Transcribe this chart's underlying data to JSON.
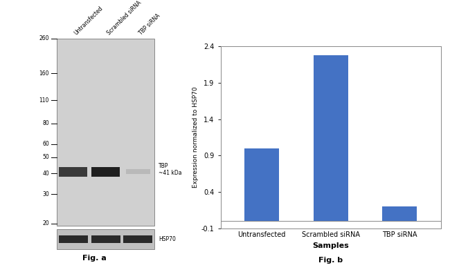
{
  "fig_width": 6.5,
  "fig_height": 3.94,
  "dpi": 100,
  "bar_categories": [
    "Untransfected",
    "Scrambled siRNA",
    "TBP siRNA"
  ],
  "bar_values": [
    1.0,
    2.28,
    0.2
  ],
  "bar_color": "#4472C4",
  "bar_ylabel": "Expression normalized to HSP70",
  "bar_xlabel": "Samples",
  "bar_ylim": [
    -0.1,
    2.4
  ],
  "bar_yticks": [
    -0.1,
    0.4,
    0.9,
    1.4,
    1.9,
    2.4
  ],
  "fig_b_label": "Fig. b",
  "fig_a_label": "Fig. a",
  "wb_mw_labels": [
    "260",
    "160",
    "110",
    "80",
    "60",
    "50",
    "40",
    "30",
    "20"
  ],
  "wb_mw_y": [
    260,
    160,
    110,
    80,
    60,
    50,
    40,
    30,
    20
  ],
  "wb_tbp_label": "TBP\n~41 kDa",
  "wb_hsp70_label": "HSP70",
  "wb_col_labels": [
    "Untransfected",
    "Scrambled siRNA",
    "TBP siRNA"
  ],
  "wb_gel_color": "#d0d0d0",
  "wb_gel_light": "#e0e0e0",
  "wb_band_dark": "#3a3a3a",
  "wb_band_med": "#555555",
  "wb_band_faint": "#bbbbbb",
  "wb_hsp_color": "#c0c0c0",
  "wb_hsp_band": "#2a2a2a",
  "wb_border": "#888888"
}
